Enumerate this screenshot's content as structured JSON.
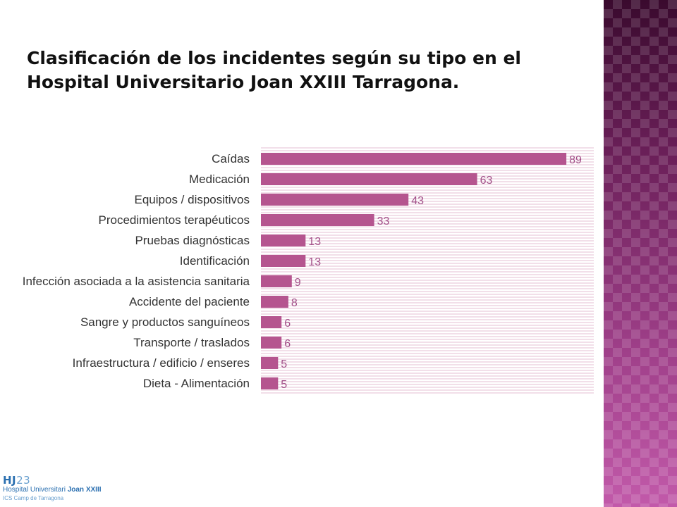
{
  "slide": {
    "title": "Clasificación de los incidentes según su tipo en el Hospital Universitario Joan XXIII Tarragona."
  },
  "logo": {
    "mark_strong": "HJ",
    "mark_light": "23",
    "name_regular": "Hospital Universitari ",
    "name_strong": "Joan XXIII",
    "subtitle": "ICS Camp de Tarragona"
  },
  "colors": {
    "bar": "#b5558f",
    "stripe": "#f2dfe9",
    "side_band": "#8a2c6e",
    "logo_blue": "#2a6fb0"
  },
  "chart_data": {
    "type": "bar",
    "orientation": "horizontal",
    "title": "",
    "xlabel": "",
    "ylabel": "",
    "xlim": [
      0,
      97
    ],
    "grid": false,
    "categories": [
      "Caídas",
      "Medicación",
      "Equipos / dispositivos",
      "Procedimientos terapéuticos",
      "Pruebas diagnósticas",
      "Identificación",
      "Infección asociada a la asistencia sanitaria",
      "Accidente del paciente",
      "Sangre y productos sanguíneos",
      "Transporte / traslados",
      "Infraestructura / edificio / enseres",
      "Dieta - Alimentación"
    ],
    "values": [
      89,
      63,
      43,
      33,
      13,
      13,
      9,
      8,
      6,
      6,
      5,
      5
    ]
  }
}
